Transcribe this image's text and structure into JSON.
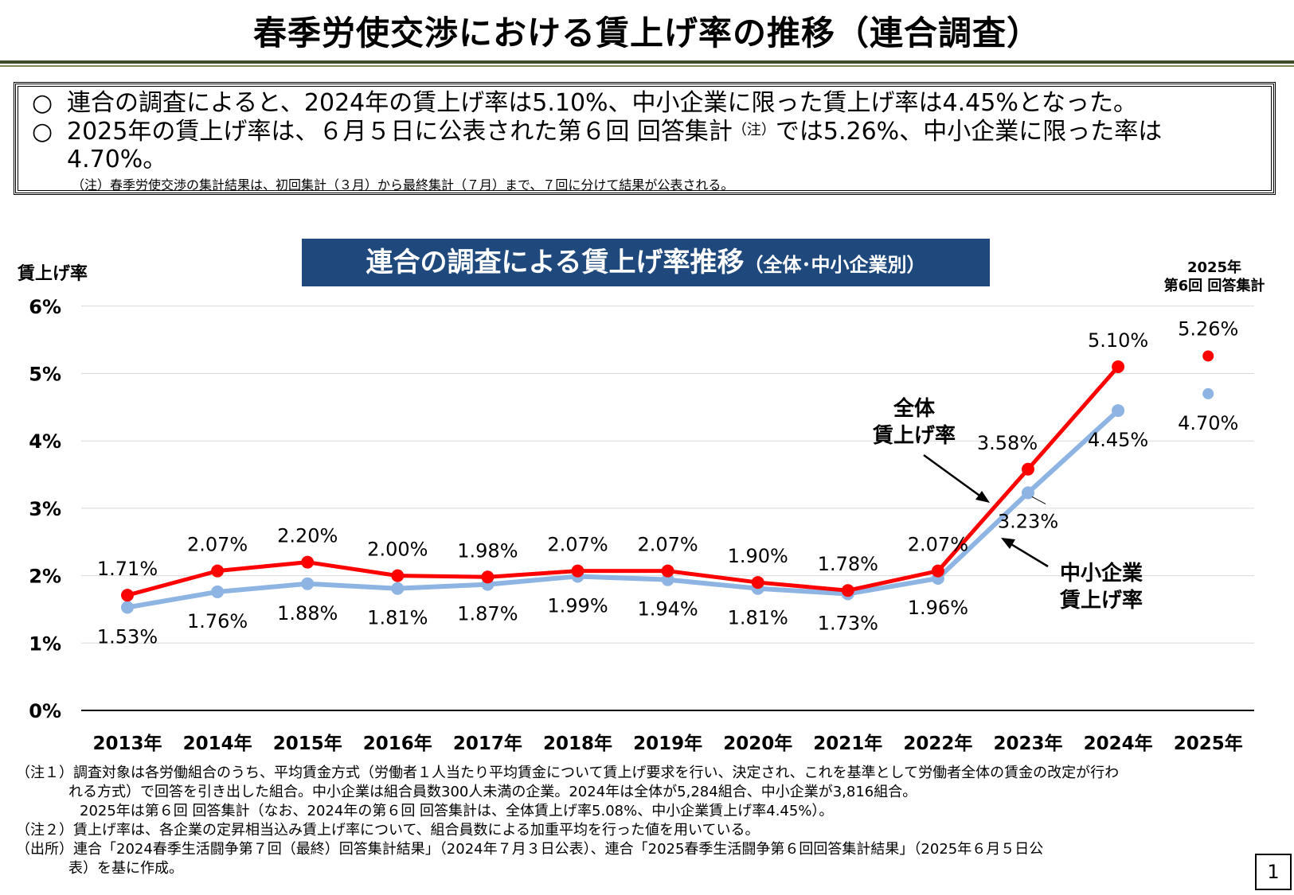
{
  "title": "春季労使交渉における賃上げ率の推移（連合調査）",
  "summary": {
    "line1_mark": "○",
    "line1": "連合の調査によると、2024年の賃上げ率は5.10%、中小企業に限った賃上げ率は4.45%となった。",
    "line2_mark": "○",
    "line2_a": "2025年の賃上げ率は、６月５日に公表された第６回 回答集計",
    "line2_sup": "（注）",
    "line2_b": "では5.26%、中小企業に限った率は",
    "line2_cont": "4.70%。",
    "note": "（注）春季労使交渉の集計結果は、初回集計（３月）から最終集計（７月）まで、７回に分けて結果が公表される。"
  },
  "chart_banner": {
    "main": "連合の調査による賃上げ率推移",
    "sub": "（全体･中小企業別）"
  },
  "y_axis_title": "賃上げ率",
  "tag_2025": {
    "line1": "2025年",
    "line2": "第6回 回答集計"
  },
  "chart_data": {
    "type": "line",
    "categories": [
      "2013年",
      "2014年",
      "2015年",
      "2016年",
      "2017年",
      "2018年",
      "2019年",
      "2020年",
      "2021年",
      "2022年",
      "2023年",
      "2024年",
      "2025年"
    ],
    "ylim": [
      0,
      6
    ],
    "yticks": [
      "0%",
      "1%",
      "2%",
      "3%",
      "4%",
      "5%",
      "6%"
    ],
    "grid": true,
    "series": [
      {
        "name": "全体 賃上げ率",
        "color": "#ff0000",
        "values": [
          1.71,
          2.07,
          2.2,
          2.0,
          1.98,
          2.07,
          2.07,
          1.9,
          1.78,
          2.07,
          3.58,
          5.1,
          5.26
        ],
        "labels": [
          "1.71%",
          "2.07%",
          "2.20%",
          "2.00%",
          "1.98%",
          "2.07%",
          "2.07%",
          "1.90%",
          "1.78%",
          "2.07%",
          "3.58%",
          "5.10%",
          "5.26%"
        ]
      },
      {
        "name": "中小企業 賃上げ率",
        "color": "#8eb4e3",
        "values": [
          1.53,
          1.76,
          1.88,
          1.81,
          1.87,
          1.99,
          1.94,
          1.81,
          1.73,
          1.96,
          3.23,
          4.45,
          4.7
        ],
        "labels": [
          "1.53%",
          "1.76%",
          "1.88%",
          "1.81%",
          "1.87%",
          "1.99%",
          "1.94%",
          "1.81%",
          "1.73%",
          "1.96%",
          "3.23%",
          "4.45%",
          "4.70%"
        ]
      }
    ],
    "annotations": {
      "total": [
        "全体",
        "賃上げ率"
      ],
      "sme": [
        "中小企業",
        "賃上げ率"
      ]
    }
  },
  "notes": [
    "（注１）調査対象は各労働組合のうち、平均賃金方式（労働者１人当たり平均賃金について賃上げ要求を行い、決定され、これを基準として労働者全体の賃金の改定が行わ",
    "れる方式）で回答を引き出した組合。中小企業は組合員数300人未満の企業。2024年は全体が5,284組合、中小企業が3,816組合。",
    "2025年は第６回 回答集計（なお、2024年の第６回 回答集計は、全体賃上げ率5.08%、中小企業賃上げ率4.45%）。",
    "（注２）賃上げ率は、各企業の定昇相当込み賃上げ率について、組合員数による加重平均を行った値を用いている。",
    "（出所）連合「2024春季生活闘争第７回（最終）回答集計結果」（2024年７月３日公表）、連合「2025春季生活闘争第６回回答集計結果」（2025年６月５日公",
    "表）を基に作成。"
  ],
  "page_number": "1"
}
